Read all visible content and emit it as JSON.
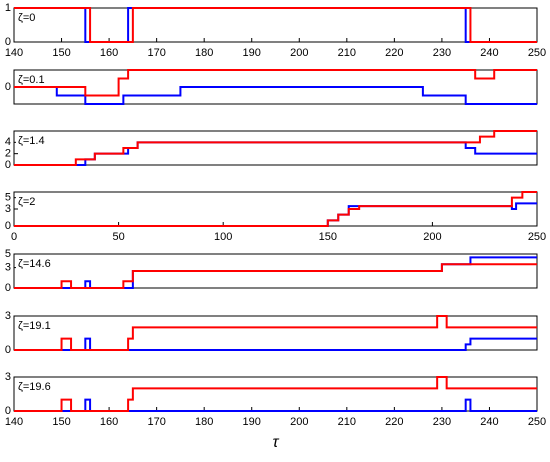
{
  "chart_data": [
    {
      "type": "line",
      "step": true,
      "annotation": "ζ=0",
      "xlim": [
        140,
        250
      ],
      "xticks": [
        140,
        150,
        160,
        170,
        180,
        190,
        200,
        210,
        220,
        230,
        240,
        250
      ],
      "ylim": [
        0,
        1
      ],
      "yticks": [
        0,
        1
      ],
      "x": [
        140,
        155,
        156,
        164,
        165,
        235,
        236,
        250
      ],
      "series": [
        {
          "color": "#0000ff",
          "values": [
            1,
            0,
            0,
            1,
            1,
            0,
            0,
            0
          ]
        },
        {
          "color": "#ff0000",
          "values": [
            1,
            1,
            0,
            0,
            1,
            1,
            0,
            0
          ]
        }
      ]
    },
    {
      "type": "line",
      "step": true,
      "annotation": "ζ=0.1",
      "xlim": [
        140,
        250
      ],
      "ylim": [
        -1,
        1
      ],
      "yticks": [
        0
      ],
      "x": [
        140,
        149,
        155,
        162,
        163,
        164,
        175,
        226,
        235,
        237,
        241,
        250
      ],
      "series": [
        {
          "color": "#0000ff",
          "values": [
            0,
            -0.5,
            -1,
            -1,
            -0.5,
            -0.5,
            0,
            -0.5,
            -1,
            -1,
            -1,
            -1
          ]
        },
        {
          "color": "#ff0000",
          "values": [
            0,
            0,
            -0.5,
            0.5,
            0.5,
            1,
            1,
            1,
            1,
            0.5,
            1,
            1
          ]
        }
      ]
    },
    {
      "type": "line",
      "step": true,
      "annotation": "ζ=1.4",
      "xlim": [
        140,
        250
      ],
      "ylim": [
        0,
        6
      ],
      "yticks": [
        0,
        2,
        4
      ],
      "x": [
        140,
        153,
        155,
        157,
        163,
        164,
        166,
        235,
        237,
        238,
        241,
        250
      ],
      "series": [
        {
          "color": "#0000ff",
          "values": [
            0,
            0,
            1,
            2,
            2,
            3,
            4,
            3,
            2,
            2,
            2,
            2
          ]
        },
        {
          "color": "#ff0000",
          "values": [
            0,
            1,
            1,
            2,
            3,
            3,
            4,
            4,
            4,
            5,
            6,
            6
          ]
        }
      ]
    },
    {
      "type": "line",
      "step": true,
      "annotation": "ζ=2",
      "xlim": [
        0,
        250
      ],
      "xticks": [
        0,
        50,
        100,
        150,
        200,
        250
      ],
      "ylim": [
        0,
        6
      ],
      "yticks": [
        0,
        3,
        5
      ],
      "x": [
        0,
        150,
        155,
        160,
        165,
        235,
        238,
        240,
        243,
        250
      ],
      "series": [
        {
          "color": "#0000ff",
          "values": [
            0,
            1,
            2,
            3.5,
            3.5,
            3.5,
            3,
            4,
            4,
            4
          ]
        },
        {
          "color": "#ff0000",
          "values": [
            0,
            1,
            2,
            3,
            3.5,
            3.5,
            5,
            5,
            6,
            6
          ]
        }
      ]
    },
    {
      "type": "line",
      "step": true,
      "annotation": "ζ=14.6",
      "xlim": [
        140,
        250
      ],
      "ylim": [
        0,
        5
      ],
      "yticks": [
        0,
        3,
        5
      ],
      "x": [
        140,
        150,
        152,
        155,
        156,
        163,
        165,
        230,
        236,
        250
      ],
      "series": [
        {
          "color": "#0000ff",
          "values": [
            0,
            0,
            0,
            1,
            0,
            0,
            2.5,
            3.5,
            4.5,
            4.5
          ]
        },
        {
          "color": "#ff0000",
          "values": [
            0,
            1,
            0,
            0,
            0,
            1,
            2.5,
            3.5,
            3.5,
            3.5
          ]
        }
      ]
    },
    {
      "type": "line",
      "step": true,
      "annotation": "ζ=19.1",
      "xlim": [
        140,
        250
      ],
      "ylim": [
        0,
        3
      ],
      "yticks": [
        0,
        3
      ],
      "x": [
        140,
        150,
        152,
        155,
        156,
        164,
        165,
        229,
        231,
        235,
        236,
        250
      ],
      "series": [
        {
          "color": "#0000ff",
          "values": [
            0,
            0,
            0,
            1,
            0,
            0,
            0,
            0,
            0,
            0.5,
            1,
            1
          ]
        },
        {
          "color": "#ff0000",
          "values": [
            0,
            1,
            0,
            0,
            0,
            1,
            2,
            3,
            2,
            2,
            2,
            2
          ]
        }
      ]
    },
    {
      "type": "line",
      "step": true,
      "annotation": "ζ=19.6",
      "xlim": [
        140,
        250
      ],
      "xticks": [
        140,
        150,
        160,
        170,
        180,
        190,
        200,
        210,
        220,
        230,
        240,
        250
      ],
      "ylim": [
        0,
        3
      ],
      "yticks": [
        0,
        3
      ],
      "xlabel": "τ",
      "x": [
        140,
        150,
        152,
        155,
        156,
        164,
        165,
        229,
        231,
        235,
        236,
        250
      ],
      "series": [
        {
          "color": "#0000ff",
          "values": [
            0,
            0,
            0,
            1,
            0,
            0,
            0,
            0,
            0,
            1,
            0,
            0
          ]
        },
        {
          "color": "#ff0000",
          "values": [
            0,
            1,
            0,
            0,
            0,
            1,
            2,
            3,
            2,
            2,
            2,
            2
          ]
        }
      ]
    }
  ]
}
